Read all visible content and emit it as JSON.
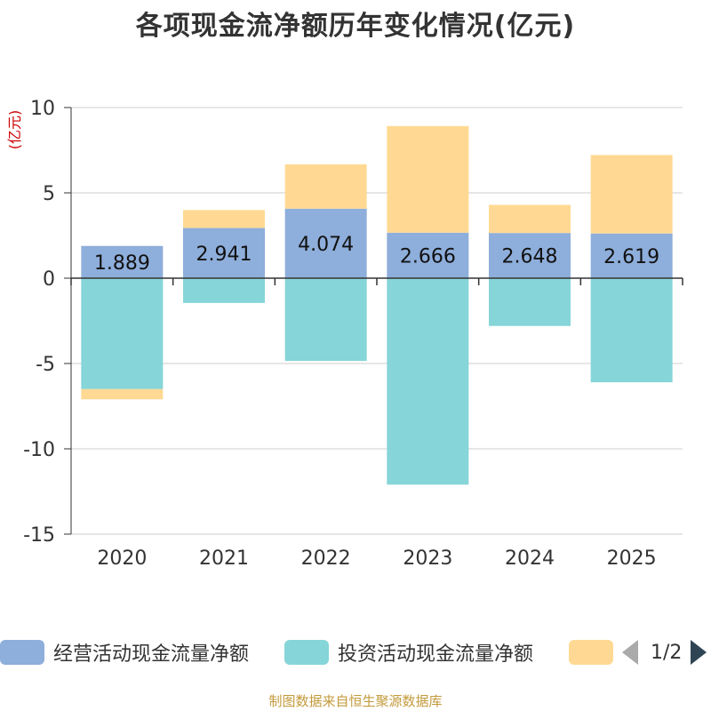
{
  "chart_data": {
    "type": "bar",
    "stacked": true,
    "title": "各项现金流净额历年变化情况(亿元)",
    "ylabel": "(亿元)",
    "xlabel": "",
    "categories": [
      "2020",
      "2021",
      "2022",
      "2023",
      "2024",
      "2025"
    ],
    "ylim": [
      -15,
      10
    ],
    "yticks": [
      10,
      5,
      0,
      -5,
      -10,
      -15
    ],
    "grid": true,
    "series": [
      {
        "name": "经营活动现金流量净额",
        "color": "#8eaedb",
        "values": [
          1.889,
          2.941,
          4.074,
          2.666,
          2.648,
          2.619
        ],
        "labels": [
          "1.889",
          "2.941",
          "4.074",
          "2.666",
          "2.648",
          "2.619"
        ]
      },
      {
        "name": "投资活动现金流量净额",
        "color": "#86d5d8",
        "values": [
          -6.5,
          -1.45,
          -4.85,
          -12.1,
          -2.8,
          -6.1
        ]
      },
      {
        "name": "",
        "color": "#ffd993",
        "values": [
          -0.6,
          1.05,
          2.6,
          6.25,
          1.65,
          4.6
        ]
      }
    ],
    "legend": {
      "position": "bottom",
      "page": "1/2"
    }
  },
  "source": "制图数据来自恒生聚源数据库"
}
